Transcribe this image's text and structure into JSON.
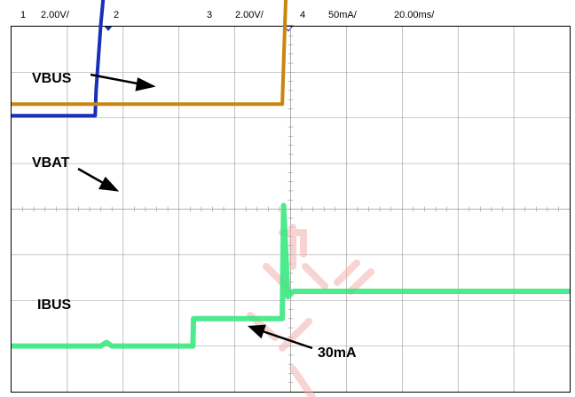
{
  "header": {
    "ch1_label": "1",
    "ch1_scale": "2.00V/",
    "ch2_label": "2",
    "ch3_label": "3",
    "ch3_scale": "2.00V/",
    "ch4_label": "4",
    "ch4_scale": "50mA/",
    "timebase": "20.00ms/"
  },
  "colors": {
    "vbus": "#1a2fb8",
    "vbat": "#c8860e",
    "ibus": "#2ee87a",
    "ch4_label": "#2fb84a",
    "grid": "#9a9a9a",
    "marker": "#1a2fb8",
    "watermark": "#f4b0b0"
  },
  "chart_data": {
    "type": "line",
    "title": "",
    "xlabel": "",
    "ylabel": "",
    "x_divisions": 10,
    "y_divisions": 8,
    "xlim": [
      0,
      200
    ],
    "grid": true,
    "series": [
      {
        "name": "VBUS",
        "unit": "V",
        "x": [
          0,
          30,
          30.3,
          32,
          34,
          36,
          40,
          45,
          50,
          200
        ],
        "y": [
          6.0,
          6.0,
          7.1,
          10.0,
          12.6,
          13.7,
          14.2,
          14.3,
          14.4,
          14.4
        ]
      },
      {
        "name": "VBAT",
        "unit": "V",
        "x": [
          0,
          97,
          98.5,
          200
        ],
        "y": [
          6.5,
          6.5,
          12.0,
          12.1
        ]
      },
      {
        "name": "IBUS",
        "unit": "mA",
        "x": [
          0,
          32,
          34,
          36,
          65,
          65.2,
          97,
          97.5,
          99,
          101,
          200
        ],
        "y": [
          26,
          26,
          30,
          26,
          26,
          56,
          56,
          180,
          80,
          86,
          86
        ]
      }
    ],
    "annotations": [
      {
        "text": "VBUS"
      },
      {
        "text": "VBAT"
      },
      {
        "text": "IBUS"
      },
      {
        "text": "30mA"
      }
    ]
  }
}
